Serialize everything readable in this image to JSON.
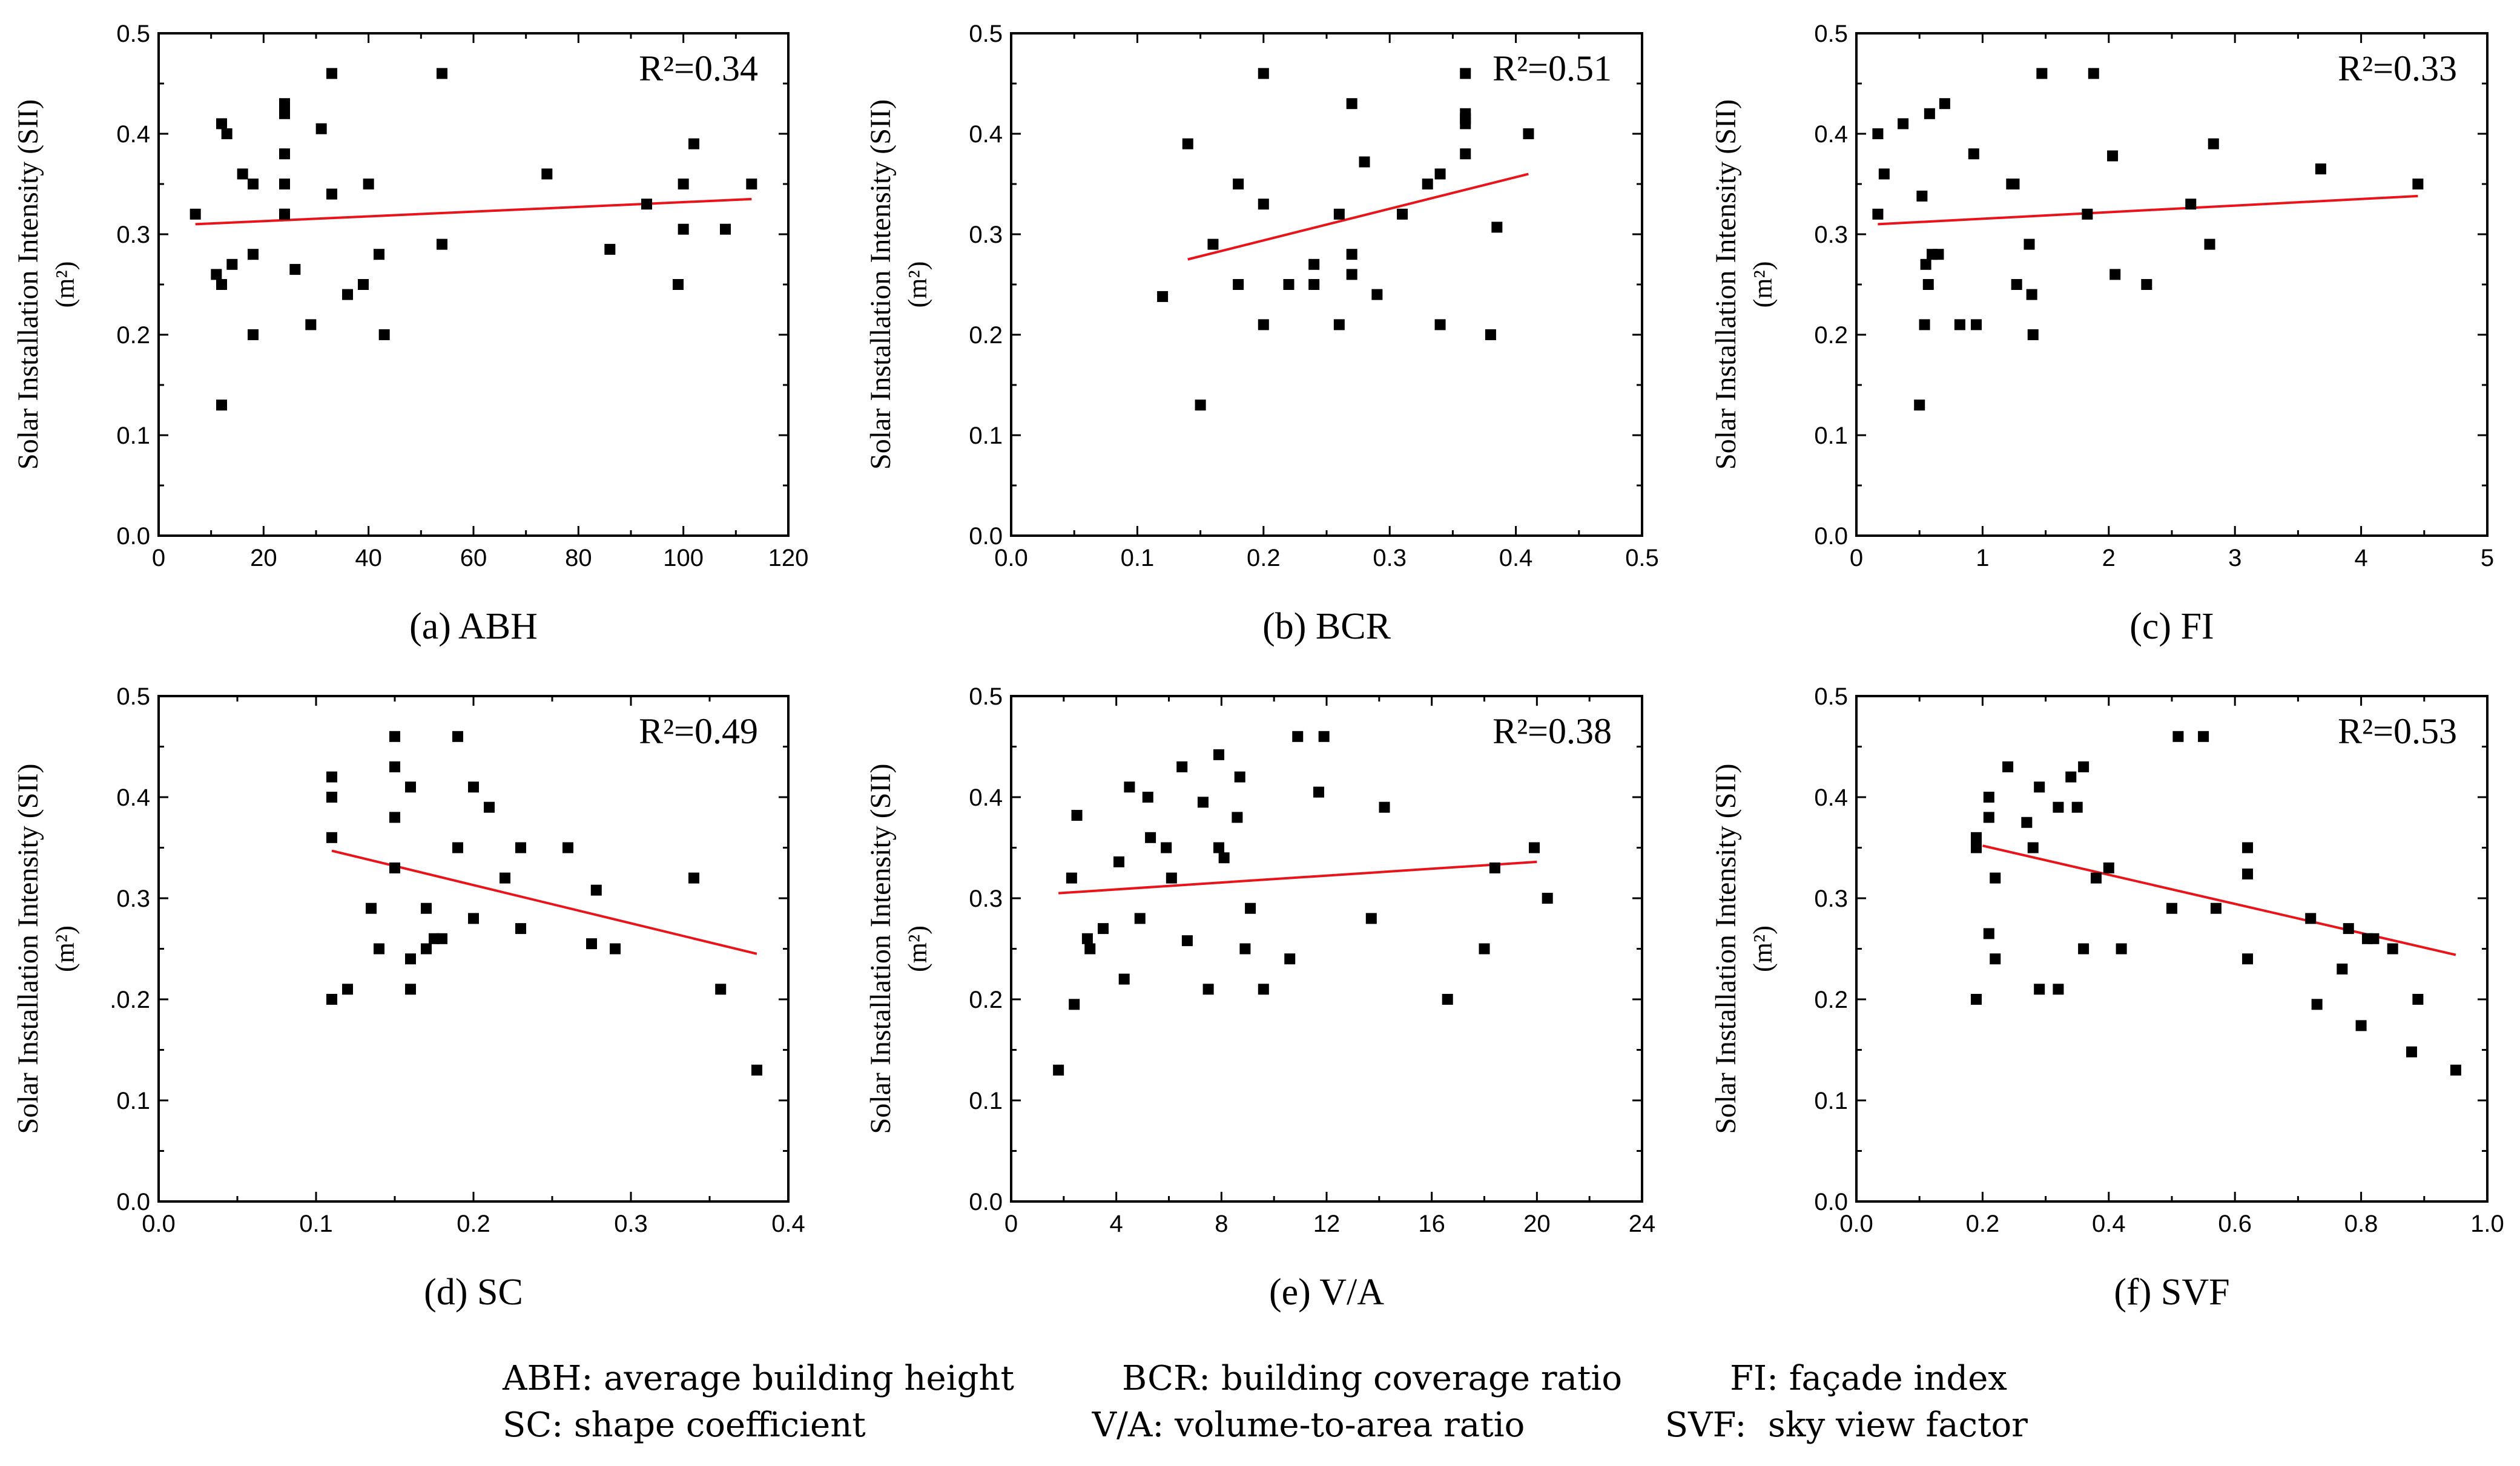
{
  "chart_data": [
    {
      "type": "scatter",
      "caption": "(a) ABH",
      "xlabel": "",
      "ylabel": "Solar Installation Intensity (SII)",
      "yunit": "(m²)",
      "xlim": [
        0,
        120
      ],
      "ylim": [
        0,
        0.5
      ],
      "xticks": [
        "0",
        "20",
        "40",
        "60",
        "80",
        "100",
        "120"
      ],
      "yticks": [
        "0.0",
        "0.1",
        "0.2",
        "0.3",
        "0.4",
        "0.5"
      ],
      "r2": "R²=0.34",
      "trend": {
        "x": [
          7,
          113
        ],
        "y": [
          0.31,
          0.335
        ]
      },
      "x": [
        7,
        11,
        12,
        12,
        12,
        13,
        14,
        16,
        18,
        18,
        18,
        24,
        24,
        24,
        24,
        24,
        24,
        26,
        29,
        31,
        33,
        33,
        36,
        39,
        40,
        42,
        43,
        54,
        54,
        74,
        86,
        93,
        99,
        100,
        100,
        102,
        108,
        113
      ],
      "y": [
        0.32,
        0.26,
        0.25,
        0.13,
        0.41,
        0.4,
        0.27,
        0.36,
        0.35,
        0.28,
        0.2,
        0.43,
        0.42,
        0.38,
        0.35,
        0.32,
        0.32,
        0.265,
        0.21,
        0.405,
        0.46,
        0.34,
        0.24,
        0.25,
        0.35,
        0.28,
        0.2,
        0.46,
        0.29,
        0.36,
        0.285,
        0.33,
        0.25,
        0.35,
        0.305,
        0.39,
        0.305,
        0.35
      ]
    },
    {
      "type": "scatter",
      "caption": "(b) BCR",
      "xlabel": "",
      "ylabel": "Solar Installation Intensity (SII)",
      "yunit": "(m²)",
      "xlim": [
        0,
        0.5
      ],
      "ylim": [
        0,
        0.5
      ],
      "xticks": [
        "0.0",
        "0.1",
        "0.2",
        "0.3",
        "0.4",
        "0.5"
      ],
      "yticks": [
        "0.0",
        "0.1",
        "0.2",
        "0.3",
        "0.4",
        "0.5"
      ],
      "r2": "R²=0.51",
      "trend": {
        "x": [
          0.14,
          0.41
        ],
        "y": [
          0.275,
          0.36
        ]
      },
      "x": [
        0.12,
        0.14,
        0.15,
        0.16,
        0.18,
        0.18,
        0.2,
        0.2,
        0.2,
        0.22,
        0.24,
        0.24,
        0.26,
        0.26,
        0.27,
        0.27,
        0.27,
        0.28,
        0.29,
        0.31,
        0.33,
        0.34,
        0.34,
        0.36,
        0.36,
        0.36,
        0.36,
        0.36,
        0.38,
        0.385,
        0.41
      ],
      "y": [
        0.238,
        0.39,
        0.13,
        0.29,
        0.35,
        0.25,
        0.46,
        0.33,
        0.21,
        0.25,
        0.27,
        0.25,
        0.32,
        0.21,
        0.43,
        0.28,
        0.26,
        0.372,
        0.24,
        0.32,
        0.35,
        0.36,
        0.21,
        0.46,
        0.42,
        0.41,
        0.38,
        0.415,
        0.2,
        0.307,
        0.4
      ]
    },
    {
      "type": "scatter",
      "caption": "(c) FI",
      "xlabel": "",
      "ylabel": "Solar Installation Intensity (SII)",
      "yunit": "(m²)",
      "xlim": [
        0,
        5
      ],
      "ylim": [
        0,
        0.5
      ],
      "xticks": [
        "0",
        "1",
        "2",
        "3",
        "4",
        "5"
      ],
      "yticks": [
        "0.0",
        "0.1",
        "0.2",
        "0.3",
        "0.4",
        "0.5"
      ],
      "r2": "R²=0.33",
      "trend": {
        "x": [
          0.17,
          4.45
        ],
        "y": [
          0.31,
          0.338
        ]
      },
      "x": [
        0.17,
        0.17,
        0.22,
        0.37,
        0.5,
        0.52,
        0.54,
        0.55,
        0.57,
        0.58,
        0.6,
        0.65,
        0.7,
        0.82,
        0.93,
        0.95,
        1.23,
        1.25,
        1.27,
        1.37,
        1.39,
        1.4,
        1.47,
        1.83,
        1.88,
        2.03,
        2.05,
        2.3,
        2.65,
        2.8,
        2.83,
        3.68,
        4.45
      ],
      "y": [
        0.32,
        0.4,
        0.36,
        0.41,
        0.13,
        0.338,
        0.21,
        0.27,
        0.25,
        0.42,
        0.28,
        0.28,
        0.43,
        0.21,
        0.38,
        0.21,
        0.35,
        0.35,
        0.25,
        0.29,
        0.24,
        0.2,
        0.46,
        0.32,
        0.46,
        0.378,
        0.26,
        0.25,
        0.33,
        0.29,
        0.39,
        0.365,
        0.35
      ]
    },
    {
      "type": "scatter",
      "caption": "(d) SC",
      "xlabel": "",
      "ylabel": "Solar Installation Intensity (SII)",
      "yunit": "(m²)",
      "xlim": [
        0,
        0.4
      ],
      "ylim": [
        0,
        0.5
      ],
      "xticks": [
        "0.0",
        "0.1",
        "0.2",
        "0.3",
        "0.4"
      ],
      "yticks": [
        "0.0",
        "0.1",
        ".0.2",
        "0.3",
        "0.4",
        "0.5"
      ],
      "r2": "R²=0.49",
      "trend": {
        "x": [
          0.11,
          0.38
        ],
        "y": [
          0.347,
          0.245
        ]
      },
      "x": [
        0.11,
        0.11,
        0.11,
        0.11,
        0.12,
        0.135,
        0.14,
        0.15,
        0.15,
        0.15,
        0.15,
        0.16,
        0.16,
        0.16,
        0.17,
        0.17,
        0.175,
        0.18,
        0.19,
        0.19,
        0.2,
        0.2,
        0.21,
        0.22,
        0.23,
        0.23,
        0.26,
        0.275,
        0.278,
        0.29,
        0.34,
        0.357,
        0.38
      ],
      "y": [
        0.42,
        0.4,
        0.36,
        0.2,
        0.21,
        0.29,
        0.25,
        0.46,
        0.43,
        0.38,
        0.33,
        0.41,
        0.24,
        0.21,
        0.25,
        0.29,
        0.26,
        0.26,
        0.46,
        0.35,
        0.41,
        0.28,
        0.39,
        0.32,
        0.35,
        0.27,
        0.35,
        0.255,
        0.308,
        0.25,
        0.32,
        0.21,
        0.13
      ]
    },
    {
      "type": "scatter",
      "caption": "(e) V/A",
      "xlabel": "",
      "ylabel": "Solar Installation Intensity (SII)",
      "yunit": "(m²)",
      "xlim": [
        0,
        24
      ],
      "ylim": [
        0,
        0.5
      ],
      "xticks": [
        "0",
        "4",
        "8",
        "12",
        "16",
        "20",
        "24"
      ],
      "yticks": [
        "0.0",
        "0.1",
        "0.2",
        "0.3",
        "0.4",
        "0.5"
      ],
      "r2": "R²=0.38",
      "trend": {
        "x": [
          1.8,
          20
        ],
        "y": [
          0.305,
          0.336
        ]
      },
      "x": [
        1.8,
        2.3,
        2.4,
        2.5,
        2.9,
        3.0,
        3.5,
        4.1,
        4.3,
        4.5,
        4.9,
        5.2,
        5.3,
        5.9,
        6.1,
        6.5,
        6.7,
        7.3,
        7.5,
        7.9,
        7.9,
        8.1,
        8.6,
        8.7,
        8.9,
        9.1,
        9.6,
        10.6,
        10.9,
        11.7,
        11.9,
        14.2,
        13.7,
        16.6,
        18.0,
        19.9,
        18.4,
        20.4
      ],
      "y": [
        0.13,
        0.32,
        0.195,
        0.382,
        0.26,
        0.25,
        0.27,
        0.336,
        0.22,
        0.41,
        0.28,
        0.4,
        0.36,
        0.35,
        0.32,
        0.43,
        0.258,
        0.395,
        0.21,
        0.442,
        0.35,
        0.34,
        0.38,
        0.42,
        0.25,
        0.29,
        0.21,
        0.24,
        0.46,
        0.405,
        0.46,
        0.39,
        0.28,
        0.2,
        0.25,
        0.35,
        0.33,
        0.3
      ]
    },
    {
      "type": "scatter",
      "caption": "(f) SVF",
      "xlabel": "",
      "ylabel": "Solar Installation Intensity (SII)",
      "yunit": "(m²)",
      "xlim": [
        0,
        1.0
      ],
      "ylim": [
        0,
        0.5
      ],
      "xticks": [
        "0.0",
        "0.2",
        "0.4",
        "0.6",
        "0.8",
        "1.0"
      ],
      "yticks": [
        "0.0",
        "0.1",
        "0.2",
        "0.3",
        "0.4",
        "0.5"
      ],
      "r2": "R²=0.53",
      "trend": {
        "x": [
          0.2,
          0.95
        ],
        "y": [
          0.352,
          0.244
        ]
      },
      "x": [
        0.19,
        0.19,
        0.19,
        0.21,
        0.21,
        0.21,
        0.22,
        0.22,
        0.24,
        0.27,
        0.28,
        0.29,
        0.29,
        0.32,
        0.32,
        0.34,
        0.35,
        0.36,
        0.36,
        0.38,
        0.4,
        0.42,
        0.5,
        0.51,
        0.55,
        0.57,
        0.62,
        0.62,
        0.62,
        0.72,
        0.73,
        0.77,
        0.78,
        0.8,
        0.81,
        0.82,
        0.85,
        0.88,
        0.89,
        0.95
      ],
      "y": [
        0.36,
        0.35,
        0.2,
        0.4,
        0.38,
        0.265,
        0.24,
        0.32,
        0.43,
        0.375,
        0.35,
        0.41,
        0.21,
        0.39,
        0.21,
        0.42,
        0.39,
        0.43,
        0.25,
        0.32,
        0.33,
        0.25,
        0.29,
        0.46,
        0.46,
        0.29,
        0.35,
        0.324,
        0.24,
        0.28,
        0.195,
        0.23,
        0.27,
        0.174,
        0.26,
        0.26,
        0.25,
        0.148,
        0.2,
        0.13
      ]
    }
  ],
  "legend": {
    "line1": "ABH: average building height          BCR: building coverage ratio          FI: façade index",
    "line2": "SC: shape coefficient                     V/A: volume-to-area ratio             SVF:  sky view factor"
  }
}
